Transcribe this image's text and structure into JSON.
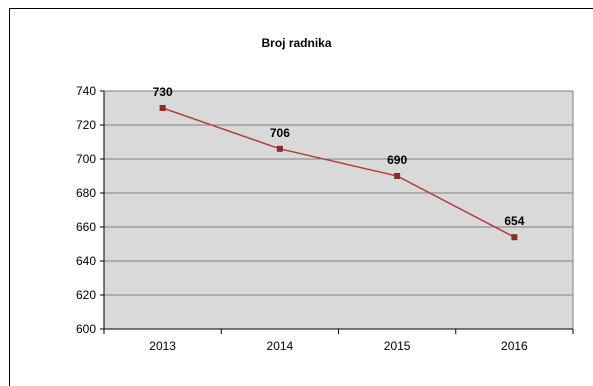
{
  "chart_data": {
    "type": "line",
    "title": "Broj radnika",
    "xlabel": "",
    "ylabel": "",
    "categories": [
      "2013",
      "2014",
      "2015",
      "2016"
    ],
    "series": [
      {
        "values": [
          730,
          706,
          690,
          654
        ],
        "data_labels": [
          "730",
          "706",
          "690",
          "654"
        ]
      }
    ],
    "ylim": [
      600,
      740
    ],
    "yticks": [
      600,
      620,
      640,
      660,
      680,
      700,
      720,
      740
    ],
    "ytick_labels": [
      "600",
      "620",
      "640",
      "660",
      "680",
      "700",
      "720",
      "740"
    ],
    "grid": true,
    "legend": "none",
    "colors": {
      "plot_background": "#d9d9d9",
      "line": "#b0413e",
      "marker": "#8c2b28"
    }
  }
}
